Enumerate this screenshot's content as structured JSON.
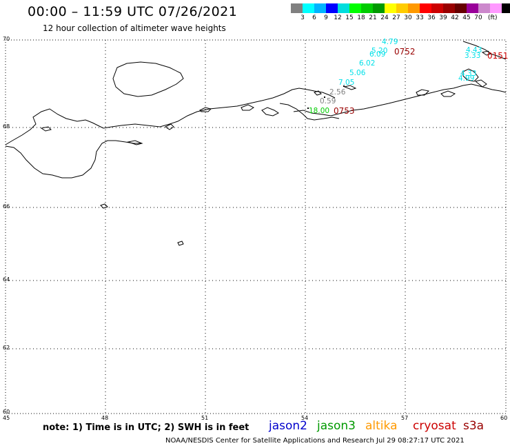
{
  "header": {
    "title": "00:00 – 11:59 UTC 07/26/2021",
    "subtitle": "12 hour collection of altimeter wave heights"
  },
  "scale": {
    "unit": "(ft)",
    "colors": [
      "#808080",
      "#00ffff",
      "#00b4ff",
      "#0000ff",
      "#00dddd",
      "#00ff00",
      "#00cc00",
      "#009900",
      "#ffff00",
      "#ffcc00",
      "#ff9900",
      "#ff0000",
      "#cc0000",
      "#990000",
      "#660000",
      "#990099",
      "#cc88cc",
      "#ff99ff",
      "#000000"
    ],
    "labels": [
      "3",
      "6",
      "9",
      "12",
      "15",
      "18",
      "21",
      "24",
      "27",
      "30",
      "33",
      "36",
      "39",
      "42",
      "45",
      "70"
    ]
  },
  "axes": {
    "lat_labels": [
      "70",
      "68",
      "66",
      "64",
      "62",
      "60"
    ],
    "lon_labels": [
      "45",
      "48",
      "51",
      "54",
      "57",
      "60"
    ]
  },
  "observations": [
    {
      "text": "4.79",
      "color": "#00e0e8"
    },
    {
      "text": "5.20",
      "color": "#00e0e8"
    },
    {
      "text": "6.09",
      "color": "#00e0e8"
    },
    {
      "text": "6.02",
      "color": "#00e0e8"
    },
    {
      "text": "5.06",
      "color": "#00e0e8"
    },
    {
      "text": "7.05",
      "color": "#00e0e8"
    },
    {
      "text": "2.56",
      "color": "#808080"
    },
    {
      "text": "0.59",
      "color": "#808080"
    },
    {
      "text": "18.00",
      "color": "#00cc00"
    },
    {
      "text": "4.43",
      "color": "#00e0e8"
    },
    {
      "text": "3.33",
      "color": "#00e0e8"
    },
    {
      "text": "4.33",
      "color": "#00e0e8"
    },
    {
      "text": "4.99",
      "color": "#00e0e8"
    }
  ],
  "time_labels": [
    {
      "text": "0752",
      "color": "#990000"
    },
    {
      "text": "0753",
      "color": "#990000"
    },
    {
      "text": "0151",
      "color": "#cc0000"
    }
  ],
  "footer": {
    "note": "note: 1) Time is in UTC; 2) SWH is in feet",
    "satellites": [
      {
        "name": "jason2",
        "color": "#0000cc"
      },
      {
        "name": "jason3",
        "color": "#009900"
      },
      {
        "name": "altika",
        "color": "#ff9900"
      },
      {
        "name": "cryosat",
        "color": "#cc0000"
      },
      {
        "name": "s3a",
        "color": "#990000"
      }
    ],
    "credit": "NOAA/NESDIS Center for Satellite Applications and Research    Jul 29 08:27:17 UTC 2021"
  }
}
